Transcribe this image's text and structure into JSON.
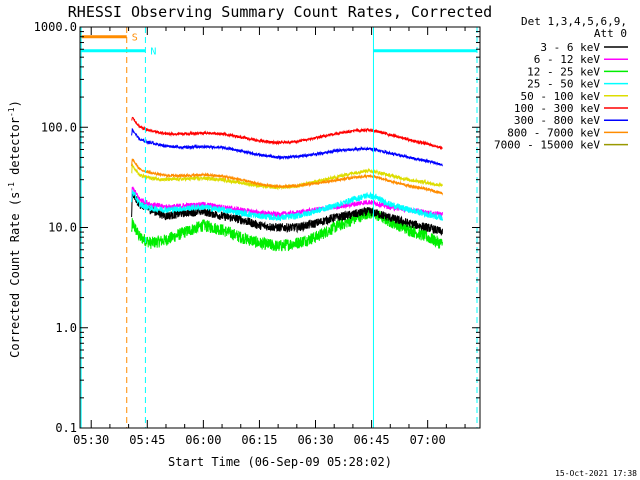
{
  "chart_data": {
    "type": "line",
    "title": "RHESSI Observing Summary Count Rates, Corrected",
    "xlabel": "Start Time (06-Sep-09 05:28:02)",
    "ylabel_main": "Corrected Count Rate (s",
    "ylabel_sup1": "-1",
    "ylabel_mid": " detector",
    "ylabel_sup2": "-1",
    "ylabel_end": ")",
    "yscale": "log",
    "ylim": [
      0.1,
      1000
    ],
    "xlim_min": [
      327,
      434
    ],
    "x_ticks": [
      {
        "value": 330,
        "label": "05:30"
      },
      {
        "value": 345,
        "label": "05:45"
      },
      {
        "value": 360,
        "label": "06:00"
      },
      {
        "value": 375,
        "label": "06:15"
      },
      {
        "value": 390,
        "label": "06:30"
      },
      {
        "value": 405,
        "label": "06:45"
      },
      {
        "value": 420,
        "label": "07:00"
      }
    ],
    "y_ticks": [
      {
        "value": 0.1,
        "label": "0.1"
      },
      {
        "value": 1,
        "label": "1.0"
      },
      {
        "value": 10,
        "label": "10.0"
      },
      {
        "value": 100,
        "label": "100.0"
      },
      {
        "value": 1000,
        "label": "1000.0"
      }
    ],
    "legend_header": [
      "Det 1,3,4,5,6,9,",
      "Att 0"
    ],
    "legend_position": "right",
    "timestamp": "15-Oct-2021 17:38",
    "series": [
      {
        "name": "3 - 6 keV",
        "color": "#000000",
        "noise": 0.1,
        "points": [
          [
            340.8,
            14
          ],
          [
            341,
            21
          ],
          [
            343,
            17
          ],
          [
            346,
            15
          ],
          [
            350,
            13
          ],
          [
            355,
            14
          ],
          [
            360,
            14.5
          ],
          [
            365,
            13
          ],
          [
            370,
            12
          ],
          [
            375,
            10.5
          ],
          [
            380,
            10
          ],
          [
            385,
            10
          ],
          [
            390,
            11
          ],
          [
            395,
            12.5
          ],
          [
            400,
            13.5
          ],
          [
            404,
            14.5
          ],
          [
            406,
            14
          ],
          [
            410,
            12.5
          ],
          [
            415,
            11
          ],
          [
            420,
            10
          ],
          [
            424,
            9
          ]
        ]
      },
      {
        "name": "6 - 12 keV",
        "color": "#ff00ff",
        "noise": 0.06,
        "points": [
          [
            340.8,
            19
          ],
          [
            341,
            25
          ],
          [
            343,
            19
          ],
          [
            346,
            17
          ],
          [
            350,
            16
          ],
          [
            355,
            16.5
          ],
          [
            360,
            17
          ],
          [
            365,
            16
          ],
          [
            370,
            15
          ],
          [
            375,
            14
          ],
          [
            380,
            13.5
          ],
          [
            385,
            14
          ],
          [
            390,
            15
          ],
          [
            395,
            16
          ],
          [
            400,
            17
          ],
          [
            404,
            18
          ],
          [
            406,
            17.5
          ],
          [
            410,
            16
          ],
          [
            415,
            15
          ],
          [
            420,
            14
          ],
          [
            424,
            13.5
          ]
        ]
      },
      {
        "name": "12 - 25 keV",
        "color": "#00ee00",
        "noise": 0.14,
        "points": [
          [
            340.8,
            9
          ],
          [
            341,
            11
          ],
          [
            343,
            8
          ],
          [
            346,
            7
          ],
          [
            350,
            7.5
          ],
          [
            355,
            9
          ],
          [
            360,
            10.5
          ],
          [
            365,
            9.5
          ],
          [
            370,
            8
          ],
          [
            375,
            7
          ],
          [
            380,
            6.5
          ],
          [
            385,
            7
          ],
          [
            390,
            8
          ],
          [
            395,
            10
          ],
          [
            400,
            12
          ],
          [
            404,
            14
          ],
          [
            406,
            13.5
          ],
          [
            410,
            11.5
          ],
          [
            415,
            9.5
          ],
          [
            420,
            8
          ],
          [
            424,
            6.8
          ]
        ]
      },
      {
        "name": "25 - 50 keV",
        "color": "#00ffff",
        "noise": 0.07,
        "points": [
          [
            340.8,
            18
          ],
          [
            341,
            23
          ],
          [
            343,
            17
          ],
          [
            346,
            15.5
          ],
          [
            350,
            15
          ],
          [
            355,
            15.5
          ],
          [
            360,
            16
          ],
          [
            365,
            15
          ],
          [
            370,
            14
          ],
          [
            375,
            13
          ],
          [
            380,
            12.5
          ],
          [
            385,
            13
          ],
          [
            390,
            14.5
          ],
          [
            395,
            16.5
          ],
          [
            400,
            19
          ],
          [
            404,
            21
          ],
          [
            406,
            20
          ],
          [
            410,
            17
          ],
          [
            415,
            15
          ],
          [
            420,
            13.5
          ],
          [
            424,
            12.5
          ]
        ]
      },
      {
        "name": "50 - 100 keV",
        "color": "#dddd00",
        "noise": 0.04,
        "points": [
          [
            340.8,
            34
          ],
          [
            341,
            42
          ],
          [
            343,
            33
          ],
          [
            346,
            31
          ],
          [
            350,
            30
          ],
          [
            355,
            30.5
          ],
          [
            360,
            31
          ],
          [
            365,
            30
          ],
          [
            370,
            28
          ],
          [
            375,
            26
          ],
          [
            380,
            25
          ],
          [
            385,
            26
          ],
          [
            390,
            28.5
          ],
          [
            395,
            31.5
          ],
          [
            400,
            35
          ],
          [
            404,
            37
          ],
          [
            406,
            36
          ],
          [
            410,
            33
          ],
          [
            415,
            30
          ],
          [
            420,
            28
          ],
          [
            424,
            26
          ]
        ]
      },
      {
        "name": "100 - 300 keV",
        "color": "#ff0000",
        "noise": 0.03,
        "points": [
          [
            340.8,
            115
          ],
          [
            341,
            125
          ],
          [
            343,
            100
          ],
          [
            346,
            92
          ],
          [
            350,
            86
          ],
          [
            355,
            86
          ],
          [
            360,
            88
          ],
          [
            365,
            86
          ],
          [
            370,
            80
          ],
          [
            375,
            73
          ],
          [
            380,
            70
          ],
          [
            385,
            72
          ],
          [
            390,
            78
          ],
          [
            395,
            86
          ],
          [
            400,
            92
          ],
          [
            404,
            94
          ],
          [
            406,
            92
          ],
          [
            410,
            84
          ],
          [
            415,
            75
          ],
          [
            420,
            68
          ],
          [
            424,
            62
          ]
        ]
      },
      {
        "name": "300 - 800 keV",
        "color": "#0000ff",
        "noise": 0.03,
        "points": [
          [
            340.8,
            85
          ],
          [
            341,
            95
          ],
          [
            343,
            75
          ],
          [
            346,
            70
          ],
          [
            350,
            65
          ],
          [
            355,
            63
          ],
          [
            360,
            64
          ],
          [
            365,
            63
          ],
          [
            370,
            58
          ],
          [
            375,
            53
          ],
          [
            380,
            50
          ],
          [
            385,
            51
          ],
          [
            390,
            54
          ],
          [
            395,
            58
          ],
          [
            400,
            60
          ],
          [
            404,
            61
          ],
          [
            406,
            60
          ],
          [
            410,
            55
          ],
          [
            415,
            50
          ],
          [
            420,
            46
          ],
          [
            424,
            42
          ]
        ]
      },
      {
        "name": "800 - 7000 keV",
        "color": "#ff8c00",
        "noise": 0.03,
        "points": [
          [
            340.8,
            42
          ],
          [
            341,
            48
          ],
          [
            343,
            38
          ],
          [
            346,
            35
          ],
          [
            350,
            33
          ],
          [
            355,
            33
          ],
          [
            360,
            33.5
          ],
          [
            365,
            32.5
          ],
          [
            370,
            30
          ],
          [
            375,
            27
          ],
          [
            380,
            25.5
          ],
          [
            385,
            26
          ],
          [
            390,
            27.5
          ],
          [
            395,
            29.5
          ],
          [
            400,
            31.5
          ],
          [
            404,
            32.5
          ],
          [
            406,
            32
          ],
          [
            410,
            29
          ],
          [
            415,
            26
          ],
          [
            420,
            24
          ],
          [
            424,
            22
          ]
        ]
      },
      {
        "name": "7000 - 15000 keV",
        "color": "#999900",
        "noise": 0,
        "points": []
      }
    ],
    "markers": [
      {
        "label": "S",
        "color": "#ff8c00",
        "bar_y": 800,
        "bar_x": [
          327.3,
          339.5
        ],
        "dash_x": 339.5
      },
      {
        "label": "N",
        "color": "#00ffff",
        "bar_y": 580,
        "bar_x": [
          327.3,
          344.5
        ],
        "dash_x": 344.5
      },
      {
        "label": "",
        "color": "#00ffff",
        "bar_y": 580,
        "bar_x": [
          405.5,
          433.2
        ],
        "dash_x": 433.2
      }
    ],
    "cyan_solid_lines": [
      327.3,
      405.5
    ]
  }
}
